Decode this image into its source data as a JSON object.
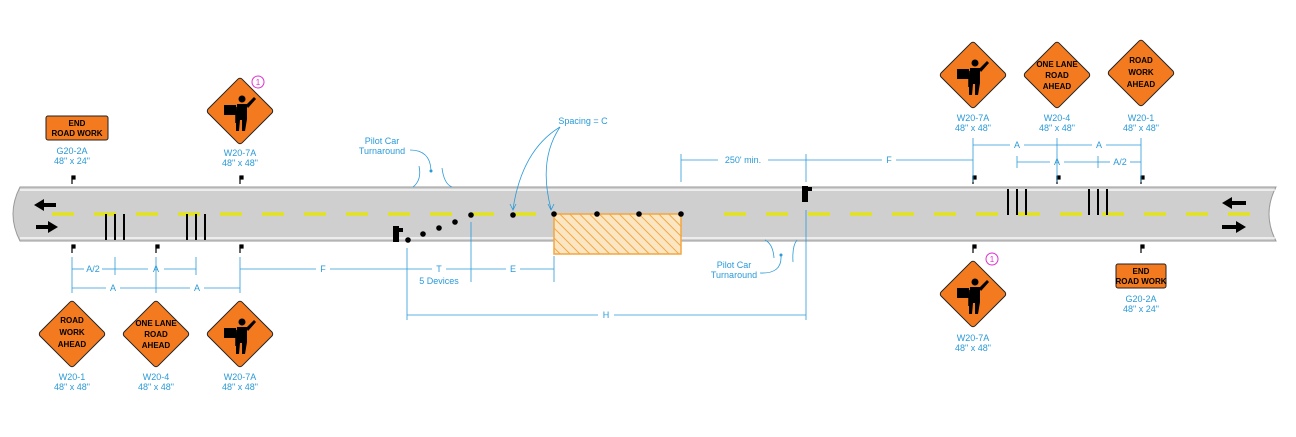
{
  "colors": {
    "road": "#cfcfcf",
    "lane_line": "#e6e600",
    "dimension": "#2a9ad8",
    "sign_orange": "#f47a20",
    "work_zone": "#f4a640",
    "circle_note": "#e030d0"
  },
  "signs": {
    "top_end_road_work": {
      "line1": "END",
      "line2": "ROAD WORK",
      "code": "G20-2A",
      "size": "48\" x 24\""
    },
    "top_flagger_left": {
      "code": "W20-7A",
      "size": "48\" x 48\"",
      "note": "1",
      "icon": "flagger-icon"
    },
    "top_flagger_right": {
      "code": "W20-7A",
      "size": "48\" x 48\"",
      "icon": "flagger-icon"
    },
    "top_one_lane": {
      "line1": "ONE LANE",
      "line2": "ROAD",
      "line3": "AHEAD",
      "code": "W20-4",
      "size": "48\" x 48\""
    },
    "top_road_work": {
      "line1": "ROAD",
      "line2": "WORK",
      "line3": "AHEAD",
      "code": "W20-1",
      "size": "48\" x 48\""
    },
    "bot_road_work": {
      "line1": "ROAD",
      "line2": "WORK",
      "line3": "AHEAD",
      "code": "W20-1",
      "size": "48\" x 48\""
    },
    "bot_one_lane": {
      "line1": "ONE LANE",
      "line2": "ROAD",
      "line3": "AHEAD",
      "code": "W20-4",
      "size": "48\" x 48\""
    },
    "bot_flagger_left": {
      "code": "W20-7A",
      "size": "48\" x 48\"",
      "icon": "flagger-icon"
    },
    "bot_flagger_right": {
      "code": "W20-7A",
      "size": "48\" x 48\"",
      "note": "1",
      "icon": "flagger-icon"
    },
    "bot_end_road_work": {
      "line1": "END",
      "line2": "ROAD WORK",
      "code": "G20-2A",
      "size": "48\" x 24\""
    }
  },
  "labels": {
    "pilot_car_top_1": "Pilot Car",
    "pilot_car_top_2": "Turnaround",
    "pilot_car_bot_1": "Pilot Car",
    "pilot_car_bot_2": "Turnaround",
    "spacing": "Spacing = C",
    "devices": "5 Devices"
  },
  "dimensions": {
    "a_half_left": "A/2",
    "a_left_1": "A",
    "a_left_2": "A",
    "a_left_3": "A",
    "f_left": "F",
    "t": "T",
    "e": "E",
    "h": "H",
    "min_250": "250' min.",
    "f_right": "F",
    "a_right_1": "A",
    "a_right_2": "A",
    "a_right_3": "A",
    "a_half_right": "A/2"
  }
}
